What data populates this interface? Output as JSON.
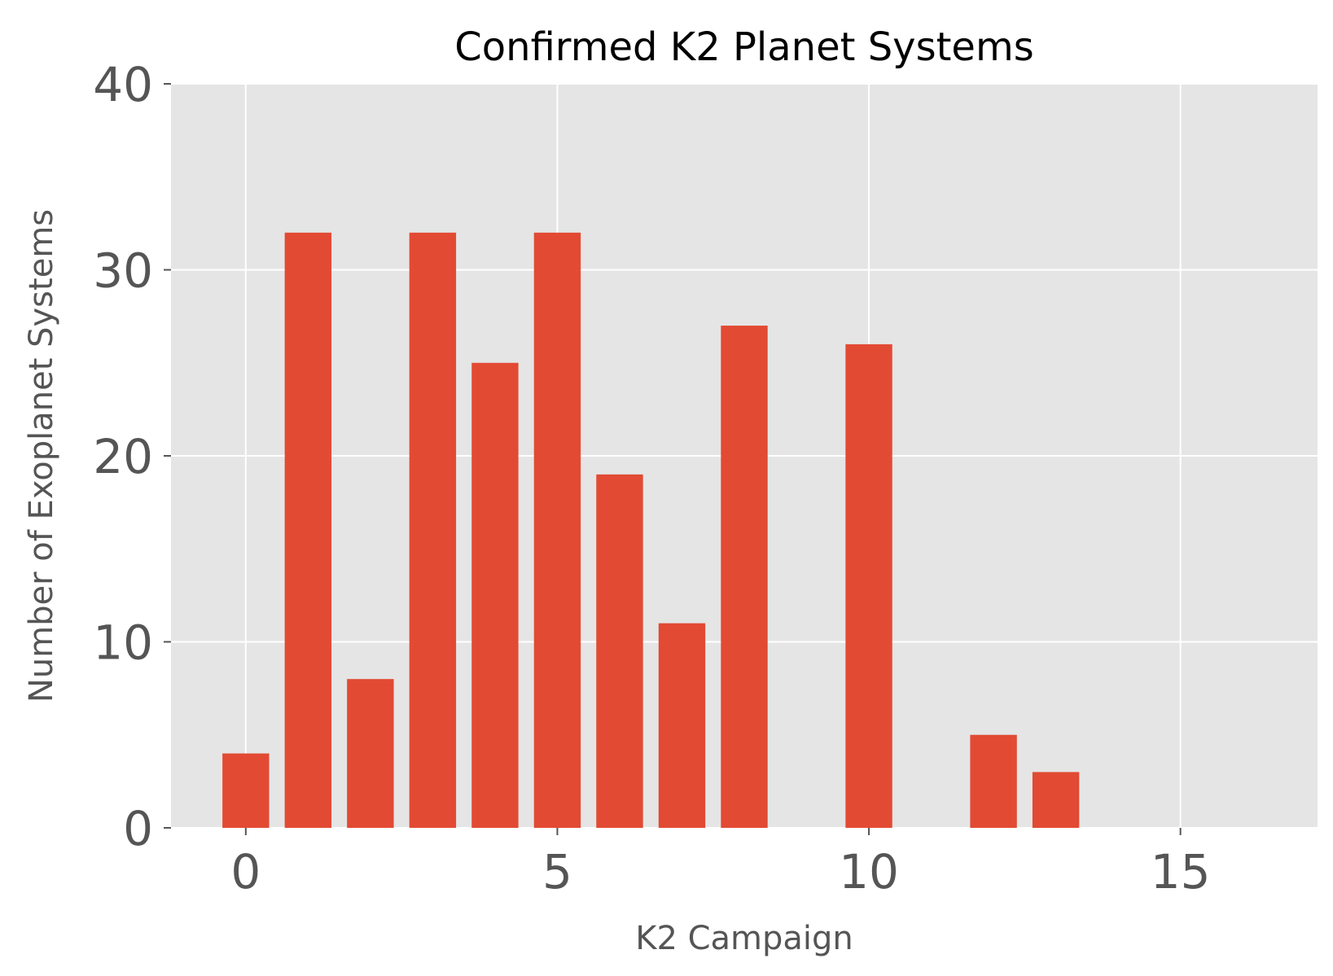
{
  "chart_data": {
    "type": "bar",
    "title": "Confirmed K2 Planet Systems",
    "xlabel": "K2 Campaign",
    "ylabel": "Number of Exoplanet Systems",
    "x": [
      0,
      1,
      2,
      3,
      4,
      5,
      6,
      7,
      8,
      9,
      10,
      11,
      12,
      13,
      14,
      15,
      16
    ],
    "values": [
      4,
      32,
      8,
      32,
      25,
      32,
      19,
      11,
      27,
      0,
      26,
      0,
      5,
      3,
      0,
      0,
      0
    ],
    "xlim": [
      -1.2,
      17.2
    ],
    "ylim": [
      0,
      40
    ],
    "xticks": [
      0,
      5,
      10,
      15
    ],
    "yticks": [
      0,
      10,
      20,
      30,
      40
    ],
    "bar_width": 0.75,
    "grid": true,
    "colors": {
      "bar": "#E24A33",
      "plot_background": "#E5E5E5",
      "grid": "#FFFFFF",
      "tick_label": "#555555",
      "title": "#000000"
    }
  }
}
